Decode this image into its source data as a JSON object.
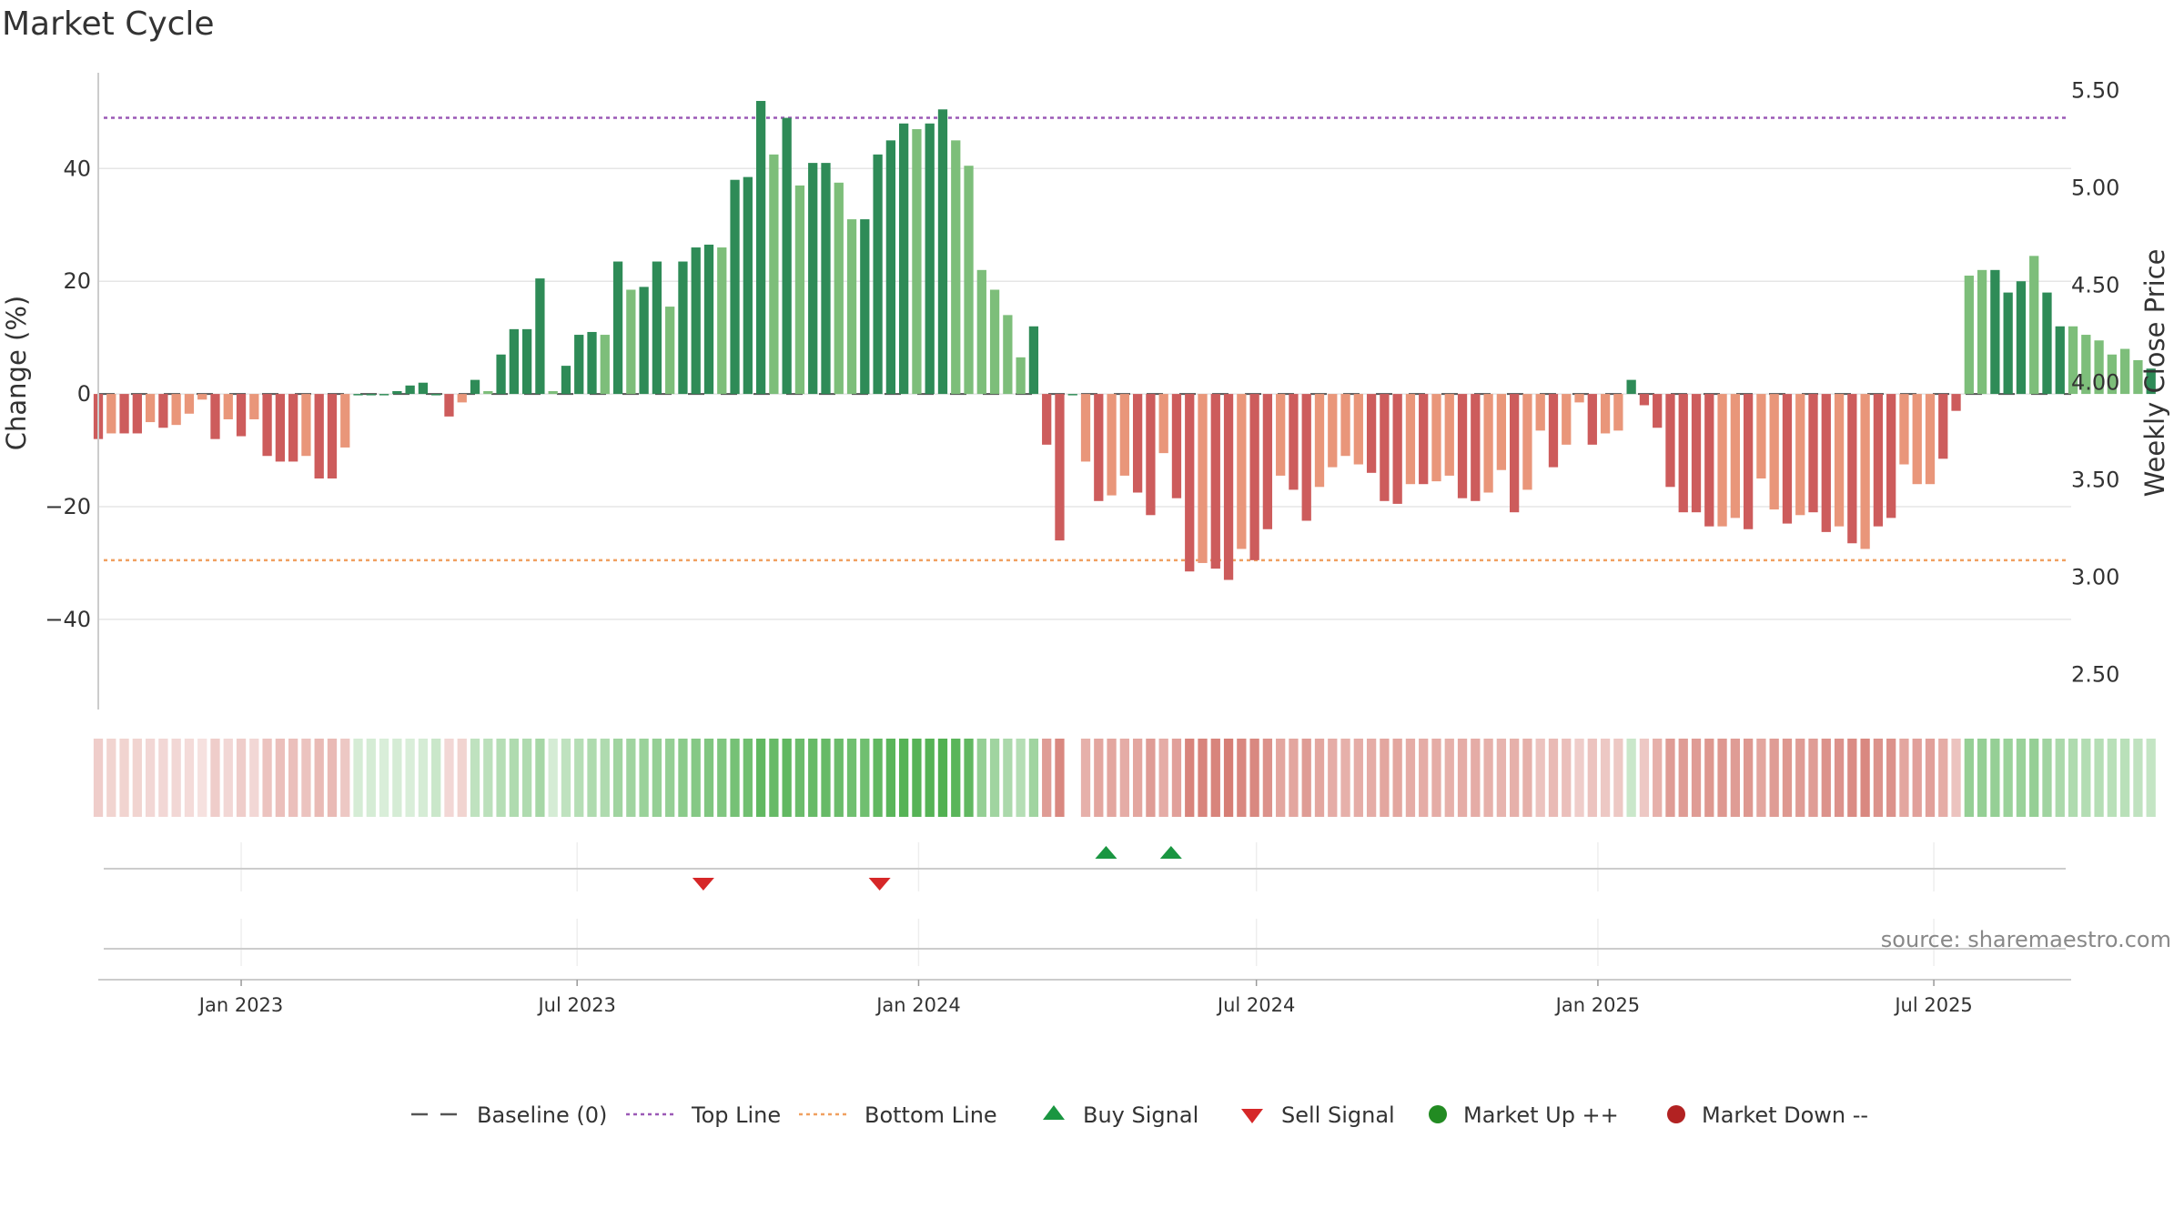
{
  "title": "Market Cycle",
  "source": "source: sharemaestro.com",
  "chart_data": {
    "type": "bar",
    "title": "Market Cycle",
    "ylabel": "Change (%)",
    "y2label": "Weekly Close Price",
    "ylim": [
      -56,
      57
    ],
    "yticks": [
      -40,
      -20,
      0,
      20,
      40
    ],
    "ytick_labels": [
      "−40",
      "−20",
      "0",
      "20",
      "40"
    ],
    "y2lim": [
      2.32,
      5.59
    ],
    "y2ticks": [
      2.5,
      3.0,
      3.5,
      4.0,
      4.5,
      5.0,
      5.5
    ],
    "y2tick_labels": [
      "2.50",
      "3.00",
      "3.50",
      "4.00",
      "4.50",
      "5.00",
      "5.50"
    ],
    "x_range": [
      "2022-10-16",
      "2025-09-13"
    ],
    "xticks": [
      "2023-01-01",
      "2023-07-01",
      "2024-01-01",
      "2024-07-01",
      "2025-01-01",
      "2025-07-01"
    ],
    "xtick_labels": [
      "Jan 2023",
      "Jul 2023",
      "Jan 2024",
      "Jul 2024",
      "Jan 2025",
      "Jul 2025"
    ],
    "top_line": 49,
    "bottom_line": -29.5,
    "baseline": 0,
    "colors": {
      "strong_up": "#2e8b57",
      "weak_up": "#7dbe7a",
      "strong_down": "#cd5c5c",
      "weak_down": "#e9967a",
      "top_line": "#9b59b6",
      "bottom_line": "#f0a060",
      "buy": "#1a9641",
      "sell": "#d62728",
      "market_up": "#228b22",
      "market_down": "#b22222"
    },
    "series_start": "2022-10-16",
    "week_interval_days": 7,
    "values": [
      -8,
      -7,
      -7,
      -7,
      -5,
      -6,
      -5.5,
      -3.5,
      -1,
      -8,
      -4.5,
      -7.5,
      -4.5,
      -11,
      -12,
      -12,
      -11,
      -15,
      -15,
      -9.5,
      0,
      0,
      0,
      0.5,
      1.5,
      2,
      0,
      -4,
      -1.5,
      2.5,
      0.5,
      7,
      11.5,
      11.5,
      20.5,
      0.5,
      5,
      10.5,
      11,
      10.5,
      23.5,
      18.5,
      19,
      23.5,
      15.5,
      23.5,
      26,
      26.5,
      26,
      38,
      38.5,
      52,
      42.5,
      49,
      37,
      41,
      41,
      37.5,
      31,
      31,
      42.5,
      45,
      48,
      47,
      48,
      50.5,
      45,
      40.5,
      22,
      18.5,
      14,
      6.5,
      12,
      -9,
      -26,
      0,
      -12,
      -19,
      -18,
      -14.5,
      -17.5,
      -21.5,
      -10.5,
      -18.5,
      -31.5,
      -30,
      -31,
      -33,
      -27.5,
      -29.5,
      -24,
      -14.5,
      -17,
      -22.5,
      -16.5,
      -13,
      -11,
      -12.5,
      -14,
      -19,
      -19.5,
      -16,
      -16,
      -15.5,
      -14.5,
      -18.5,
      -19,
      -17.5,
      -13.5,
      -21,
      -17,
      -6.5,
      -13,
      -9,
      -1.5,
      -9,
      -7,
      -6.5,
      2.5,
      -2,
      -6,
      -16.5,
      -21,
      -21,
      -23.5,
      -23.5,
      -22,
      -24,
      -15,
      -20.5,
      -23,
      -21.5,
      -21,
      -24.5,
      -23.5,
      -26.5,
      -27.5,
      -23.5,
      -22,
      -12.5,
      -16,
      -16,
      -11.5,
      -3,
      21,
      22,
      22,
      18,
      20,
      24.5,
      18,
      12,
      12,
      10.5,
      9.5,
      7,
      8,
      6,
      4.5
    ],
    "strength": [
      "s",
      "w",
      "s",
      "s",
      "w",
      "s",
      "w",
      "w",
      "w",
      "s",
      "w",
      "s",
      "w",
      "s",
      "s",
      "s",
      "w",
      "s",
      "s",
      "w",
      "s",
      "s",
      "s",
      "s",
      "s",
      "s",
      "s",
      "s",
      "w",
      "s",
      "w",
      "s",
      "s",
      "s",
      "s",
      "w",
      "s",
      "s",
      "s",
      "w",
      "s",
      "w",
      "s",
      "s",
      "w",
      "s",
      "s",
      "s",
      "w",
      "s",
      "s",
      "s",
      "w",
      "s",
      "w",
      "s",
      "s",
      "w",
      "w",
      "s",
      "s",
      "s",
      "s",
      "w",
      "s",
      "s",
      "w",
      "w",
      "w",
      "w",
      "w",
      "w",
      "s",
      "s",
      "s",
      "s",
      "w",
      "s",
      "w",
      "w",
      "s",
      "s",
      "w",
      "s",
      "s",
      "w",
      "s",
      "s",
      "w",
      "s",
      "s",
      "w",
      "s",
      "s",
      "w",
      "w",
      "w",
      "w",
      "s",
      "s",
      "s",
      "w",
      "s",
      "w",
      "w",
      "s",
      "s",
      "w",
      "w",
      "s",
      "w",
      "w",
      "s",
      "w",
      "w",
      "s",
      "w",
      "w",
      "s",
      "s",
      "s",
      "s",
      "s",
      "s",
      "s",
      "w",
      "w",
      "s",
      "w",
      "w",
      "s",
      "w",
      "s",
      "s",
      "w",
      "s",
      "w",
      "s",
      "s",
      "w",
      "w",
      "w",
      "s",
      "s",
      "w",
      "w",
      "s",
      "s",
      "s",
      "w",
      "s",
      "s",
      "w",
      "w",
      "w",
      "w",
      "w",
      "w",
      "s",
      "w",
      "w"
    ],
    "heat_intensity": [
      0.25,
      0.22,
      0.22,
      0.22,
      0.2,
      0.2,
      0.2,
      0.18,
      0.15,
      0.25,
      0.2,
      0.25,
      0.2,
      0.3,
      0.32,
      0.32,
      0.3,
      0.35,
      0.35,
      0.28,
      0.2,
      0.2,
      0.18,
      0.2,
      0.18,
      0.2,
      0.25,
      0.2,
      0.22,
      0.3,
      0.32,
      0.35,
      0.38,
      0.38,
      0.42,
      0.2,
      0.3,
      0.35,
      0.38,
      0.38,
      0.45,
      0.45,
      0.48,
      0.5,
      0.5,
      0.55,
      0.58,
      0.6,
      0.6,
      0.65,
      0.68,
      0.75,
      0.72,
      0.75,
      0.7,
      0.72,
      0.72,
      0.7,
      0.68,
      0.68,
      0.75,
      0.78,
      0.8,
      0.8,
      0.8,
      0.82,
      0.78,
      0.75,
      0.5,
      0.45,
      0.4,
      0.35,
      0.45,
      0.5,
      0.6,
      0.0,
      0.4,
      0.45,
      0.45,
      0.42,
      0.45,
      0.5,
      0.42,
      0.48,
      0.62,
      0.62,
      0.62,
      0.65,
      0.6,
      0.6,
      0.55,
      0.45,
      0.45,
      0.5,
      0.45,
      0.42,
      0.4,
      0.42,
      0.42,
      0.45,
      0.45,
      0.42,
      0.42,
      0.42,
      0.4,
      0.42,
      0.42,
      0.4,
      0.38,
      0.4,
      0.4,
      0.3,
      0.35,
      0.32,
      0.25,
      0.3,
      0.28,
      0.28,
      0.25,
      0.28,
      0.4,
      0.5,
      0.5,
      0.5,
      0.52,
      0.52,
      0.5,
      0.52,
      0.45,
      0.5,
      0.52,
      0.5,
      0.5,
      0.55,
      0.55,
      0.58,
      0.6,
      0.55,
      0.55,
      0.45,
      0.48,
      0.48,
      0.42,
      0.3,
      0.5,
      0.5,
      0.5,
      0.48,
      0.48,
      0.5,
      0.45,
      0.4,
      0.38,
      0.36,
      0.35,
      0.33,
      0.33,
      0.3,
      0.28
    ],
    "sell_signals": [
      "2023-09-07",
      "2023-12-11"
    ],
    "buy_signals": [
      "2024-04-11",
      "2024-05-16"
    ],
    "legend": [
      {
        "label": "Baseline (0)",
        "kind": "baseline"
      },
      {
        "label": "Top Line",
        "kind": "top"
      },
      {
        "label": "Bottom Line",
        "kind": "bottom"
      },
      {
        "label": "Buy Signal",
        "kind": "buy"
      },
      {
        "label": "Sell Signal",
        "kind": "sell"
      },
      {
        "label": "Market Up ++",
        "kind": "up"
      },
      {
        "label": "Market Down --",
        "kind": "down"
      }
    ],
    "legend_position": "bottom",
    "grid": true
  }
}
